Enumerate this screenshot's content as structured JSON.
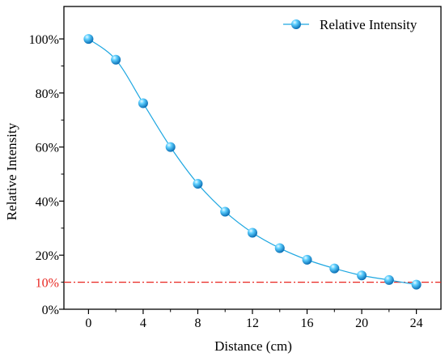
{
  "chart_data": {
    "type": "line",
    "x": [
      0,
      2,
      4,
      6,
      8,
      10,
      12,
      14,
      16,
      18,
      20,
      22,
      24
    ],
    "series": [
      {
        "name": "Relative Intensity",
        "values": [
          100,
          92.3,
          76.2,
          60.0,
          46.4,
          36.1,
          28.3,
          22.6,
          18.3,
          15.1,
          12.5,
          10.8,
          9.1
        ],
        "color": "#1ea7e1",
        "marker": "sphere"
      }
    ],
    "xlabel": "Distance (cm)",
    "ylabel": "Relative Intensity",
    "xlim": [
      -1.8,
      25.8
    ],
    "ylim": [
      0,
      112
    ],
    "xticks": [
      0,
      4,
      8,
      12,
      16,
      20,
      24
    ],
    "xtick_labels": [
      "0",
      "4",
      "8",
      "12",
      "16",
      "20",
      "24"
    ],
    "yticks": [
      0,
      20,
      40,
      60,
      80,
      100
    ],
    "ytick_labels": [
      "0%",
      "20%",
      "40%",
      "60%",
      "80%",
      "100%"
    ],
    "reference_line": {
      "value": 10,
      "label": "10%",
      "color": "#e8251f",
      "style": "dash-dot"
    },
    "legend": "top-right",
    "grid": false
  }
}
